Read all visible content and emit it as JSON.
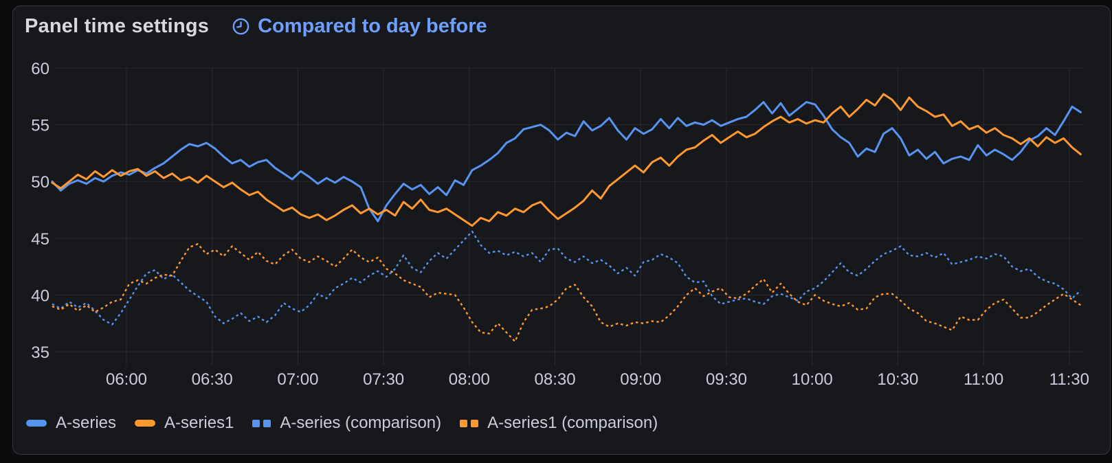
{
  "panel": {
    "title": "Panel time settings",
    "time_comparison": {
      "label": "Compared to day before",
      "icon": "clock-icon"
    }
  },
  "colors": {
    "page_background": "#0b0c0e",
    "panel_background": "#17181c",
    "panel_border": "#35373d",
    "title_text": "#d8d9dd",
    "link_blue": "#6e9fff",
    "axis_text": "#ccccdc",
    "grid_line": "rgba(204,204,220,0.10)",
    "series_blue": "#5794F2",
    "series_orange": "#FF9830"
  },
  "chart_data": {
    "type": "line",
    "title": "",
    "xlabel": "",
    "ylabel": "",
    "grid": true,
    "legend_position": "bottom-left",
    "x_axis": {
      "start_minute": 334,
      "step_minutes": 3,
      "tick_minutes": [
        360,
        390,
        420,
        450,
        480,
        510,
        540,
        570,
        600,
        630,
        660,
        690
      ],
      "tick_labels": [
        "06:00",
        "06:30",
        "07:00",
        "07:30",
        "08:00",
        "08:30",
        "09:00",
        "09:30",
        "10:00",
        "10:30",
        "11:00",
        "11:30"
      ]
    },
    "y_axis": {
      "ticks": [
        35,
        40,
        45,
        50,
        55,
        60
      ],
      "range": [
        33.9,
        60.7
      ]
    },
    "series": [
      {
        "name": "A-series",
        "color": "#5794F2",
        "style": "solid",
        "values": [
          50.0,
          49.2,
          49.8,
          50.1,
          49.8,
          50.3,
          50.0,
          50.5,
          50.8,
          50.6,
          51.0,
          50.7,
          51.2,
          51.6,
          52.2,
          52.8,
          53.3,
          53.1,
          53.4,
          52.9,
          52.2,
          51.6,
          51.9,
          51.3,
          51.7,
          51.9,
          51.2,
          50.7,
          50.2,
          50.9,
          50.4,
          49.8,
          50.3,
          49.9,
          50.4,
          50.0,
          49.5,
          47.6,
          46.5,
          47.9,
          48.9,
          49.8,
          49.3,
          49.7,
          48.9,
          49.5,
          48.8,
          50.1,
          49.7,
          51.0,
          51.4,
          51.9,
          52.5,
          53.4,
          53.8,
          54.6,
          54.8,
          55.0,
          54.5,
          53.7,
          54.3,
          54.0,
          55.3,
          54.5,
          54.9,
          55.6,
          54.5,
          53.7,
          54.7,
          54.2,
          54.6,
          55.5,
          54.7,
          55.6,
          54.9,
          55.2,
          55.0,
          55.4,
          54.9,
          55.2,
          55.5,
          55.7,
          56.3,
          57.0,
          56.0,
          56.9,
          55.8,
          56.4,
          57.0,
          56.8,
          55.8,
          54.6,
          53.9,
          53.4,
          52.2,
          52.9,
          52.6,
          54.2,
          54.7,
          53.8,
          52.3,
          52.8,
          52.0,
          52.6,
          51.6,
          52.0,
          52.2,
          51.9,
          53.2,
          52.3,
          52.8,
          52.4,
          51.9,
          52.6,
          53.6,
          54.0,
          54.7,
          54.1,
          55.3,
          56.6,
          56.1
        ]
      },
      {
        "name": "A-series1",
        "color": "#FF9830",
        "style": "solid",
        "values": [
          49.9,
          49.4,
          50.0,
          50.6,
          50.2,
          50.9,
          50.4,
          51.0,
          50.5,
          50.9,
          51.1,
          50.5,
          50.9,
          50.3,
          50.7,
          50.1,
          50.4,
          49.9,
          50.5,
          50.0,
          49.5,
          49.9,
          49.3,
          48.8,
          49.1,
          48.4,
          47.9,
          47.4,
          47.7,
          47.1,
          46.8,
          47.1,
          46.6,
          47.0,
          47.5,
          47.9,
          47.2,
          47.6,
          47.1,
          47.5,
          47.0,
          48.2,
          47.6,
          48.4,
          47.5,
          47.3,
          47.6,
          47.1,
          46.6,
          46.1,
          46.8,
          46.5,
          47.3,
          47.0,
          47.6,
          47.3,
          47.9,
          48.2,
          47.4,
          46.7,
          47.2,
          47.7,
          48.3,
          49.2,
          48.5,
          49.6,
          50.2,
          50.8,
          51.4,
          50.8,
          51.7,
          52.1,
          51.4,
          52.2,
          52.8,
          53.0,
          53.6,
          54.1,
          53.4,
          53.9,
          54.4,
          53.9,
          54.2,
          54.8,
          55.3,
          55.7,
          55.2,
          55.5,
          55.1,
          55.4,
          55.2,
          56.0,
          56.6,
          55.7,
          56.4,
          57.2,
          56.7,
          57.7,
          57.2,
          56.3,
          57.4,
          56.6,
          56.2,
          55.7,
          55.9,
          54.9,
          55.3,
          54.6,
          54.9,
          54.3,
          54.7,
          54.1,
          53.8,
          53.3,
          53.8,
          53.1,
          53.9,
          53.4,
          53.8,
          53.0,
          52.4
        ]
      },
      {
        "name": "A-series (comparison)",
        "color": "#5794F2",
        "style": "dashed",
        "values": [
          39.2,
          38.8,
          39.4,
          38.9,
          39.3,
          38.6,
          37.8,
          37.4,
          38.4,
          39.6,
          40.8,
          41.9,
          42.2,
          41.4,
          41.8,
          41.1,
          40.4,
          39.9,
          39.4,
          38.1,
          37.5,
          37.9,
          38.4,
          37.7,
          38.1,
          37.6,
          38.2,
          39.3,
          38.8,
          38.5,
          39.1,
          40.1,
          39.7,
          40.6,
          41.0,
          41.5,
          41.1,
          41.7,
          42.1,
          41.6,
          42.3,
          43.5,
          42.4,
          42.0,
          43.0,
          43.7,
          43.2,
          44.0,
          44.8,
          45.6,
          44.4,
          43.7,
          43.9,
          43.5,
          43.8,
          43.4,
          43.7,
          42.9,
          44.0,
          44.1,
          43.2,
          42.9,
          43.4,
          42.8,
          43.1,
          42.6,
          41.9,
          42.4,
          41.7,
          42.9,
          43.1,
          43.6,
          43.3,
          42.8,
          41.6,
          41.1,
          41.2,
          39.9,
          39.2,
          39.4,
          39.6,
          39.7,
          39.4,
          39.2,
          39.9,
          40.1,
          39.8,
          39.5,
          40.3,
          40.6,
          41.2,
          42.0,
          42.8,
          42.0,
          41.7,
          42.3,
          43.0,
          43.6,
          43.9,
          44.3,
          43.5,
          43.4,
          43.7,
          43.3,
          43.7,
          42.7,
          42.9,
          43.1,
          43.4,
          43.2,
          43.6,
          43.4,
          42.5,
          42.1,
          42.3,
          41.6,
          41.2,
          41.0,
          40.5,
          39.7,
          40.4
        ]
      },
      {
        "name": "A-series1 (comparison)",
        "color": "#FF9830",
        "style": "dashed",
        "values": [
          39.0,
          38.7,
          39.2,
          38.6,
          39.1,
          38.5,
          38.9,
          39.4,
          39.6,
          41.0,
          41.3,
          41.0,
          41.5,
          41.8,
          41.7,
          43.0,
          44.2,
          44.5,
          43.6,
          44.0,
          43.4,
          44.3,
          43.7,
          43.1,
          43.8,
          43.0,
          42.7,
          43.5,
          44.0,
          43.2,
          42.9,
          43.4,
          43.0,
          42.5,
          43.2,
          44.0,
          43.3,
          42.9,
          43.3,
          42.3,
          41.9,
          41.3,
          41.0,
          40.7,
          39.8,
          40.2,
          40.1,
          40.0,
          38.9,
          37.6,
          36.7,
          36.6,
          37.5,
          36.7,
          35.9,
          37.6,
          38.7,
          38.8,
          39.0,
          39.6,
          40.6,
          40.9,
          39.8,
          39.0,
          37.6,
          37.2,
          37.5,
          37.3,
          37.6,
          37.5,
          37.7,
          37.6,
          38.2,
          39.0,
          40.0,
          40.6,
          39.9,
          40.3,
          40.6,
          39.8,
          39.7,
          40.1,
          40.8,
          41.4,
          40.2,
          41.0,
          40.1,
          39.4,
          39.1,
          40.0,
          39.5,
          39.2,
          39.0,
          39.3,
          38.7,
          38.8,
          39.8,
          40.1,
          40.1,
          39.5,
          38.8,
          38.4,
          37.7,
          37.5,
          37.2,
          36.9,
          38.1,
          37.8,
          37.8,
          38.7,
          39.3,
          39.6,
          38.8,
          38.0,
          38.0,
          38.5,
          39.1,
          39.6,
          40.1,
          39.6,
          39.1
        ]
      }
    ]
  }
}
